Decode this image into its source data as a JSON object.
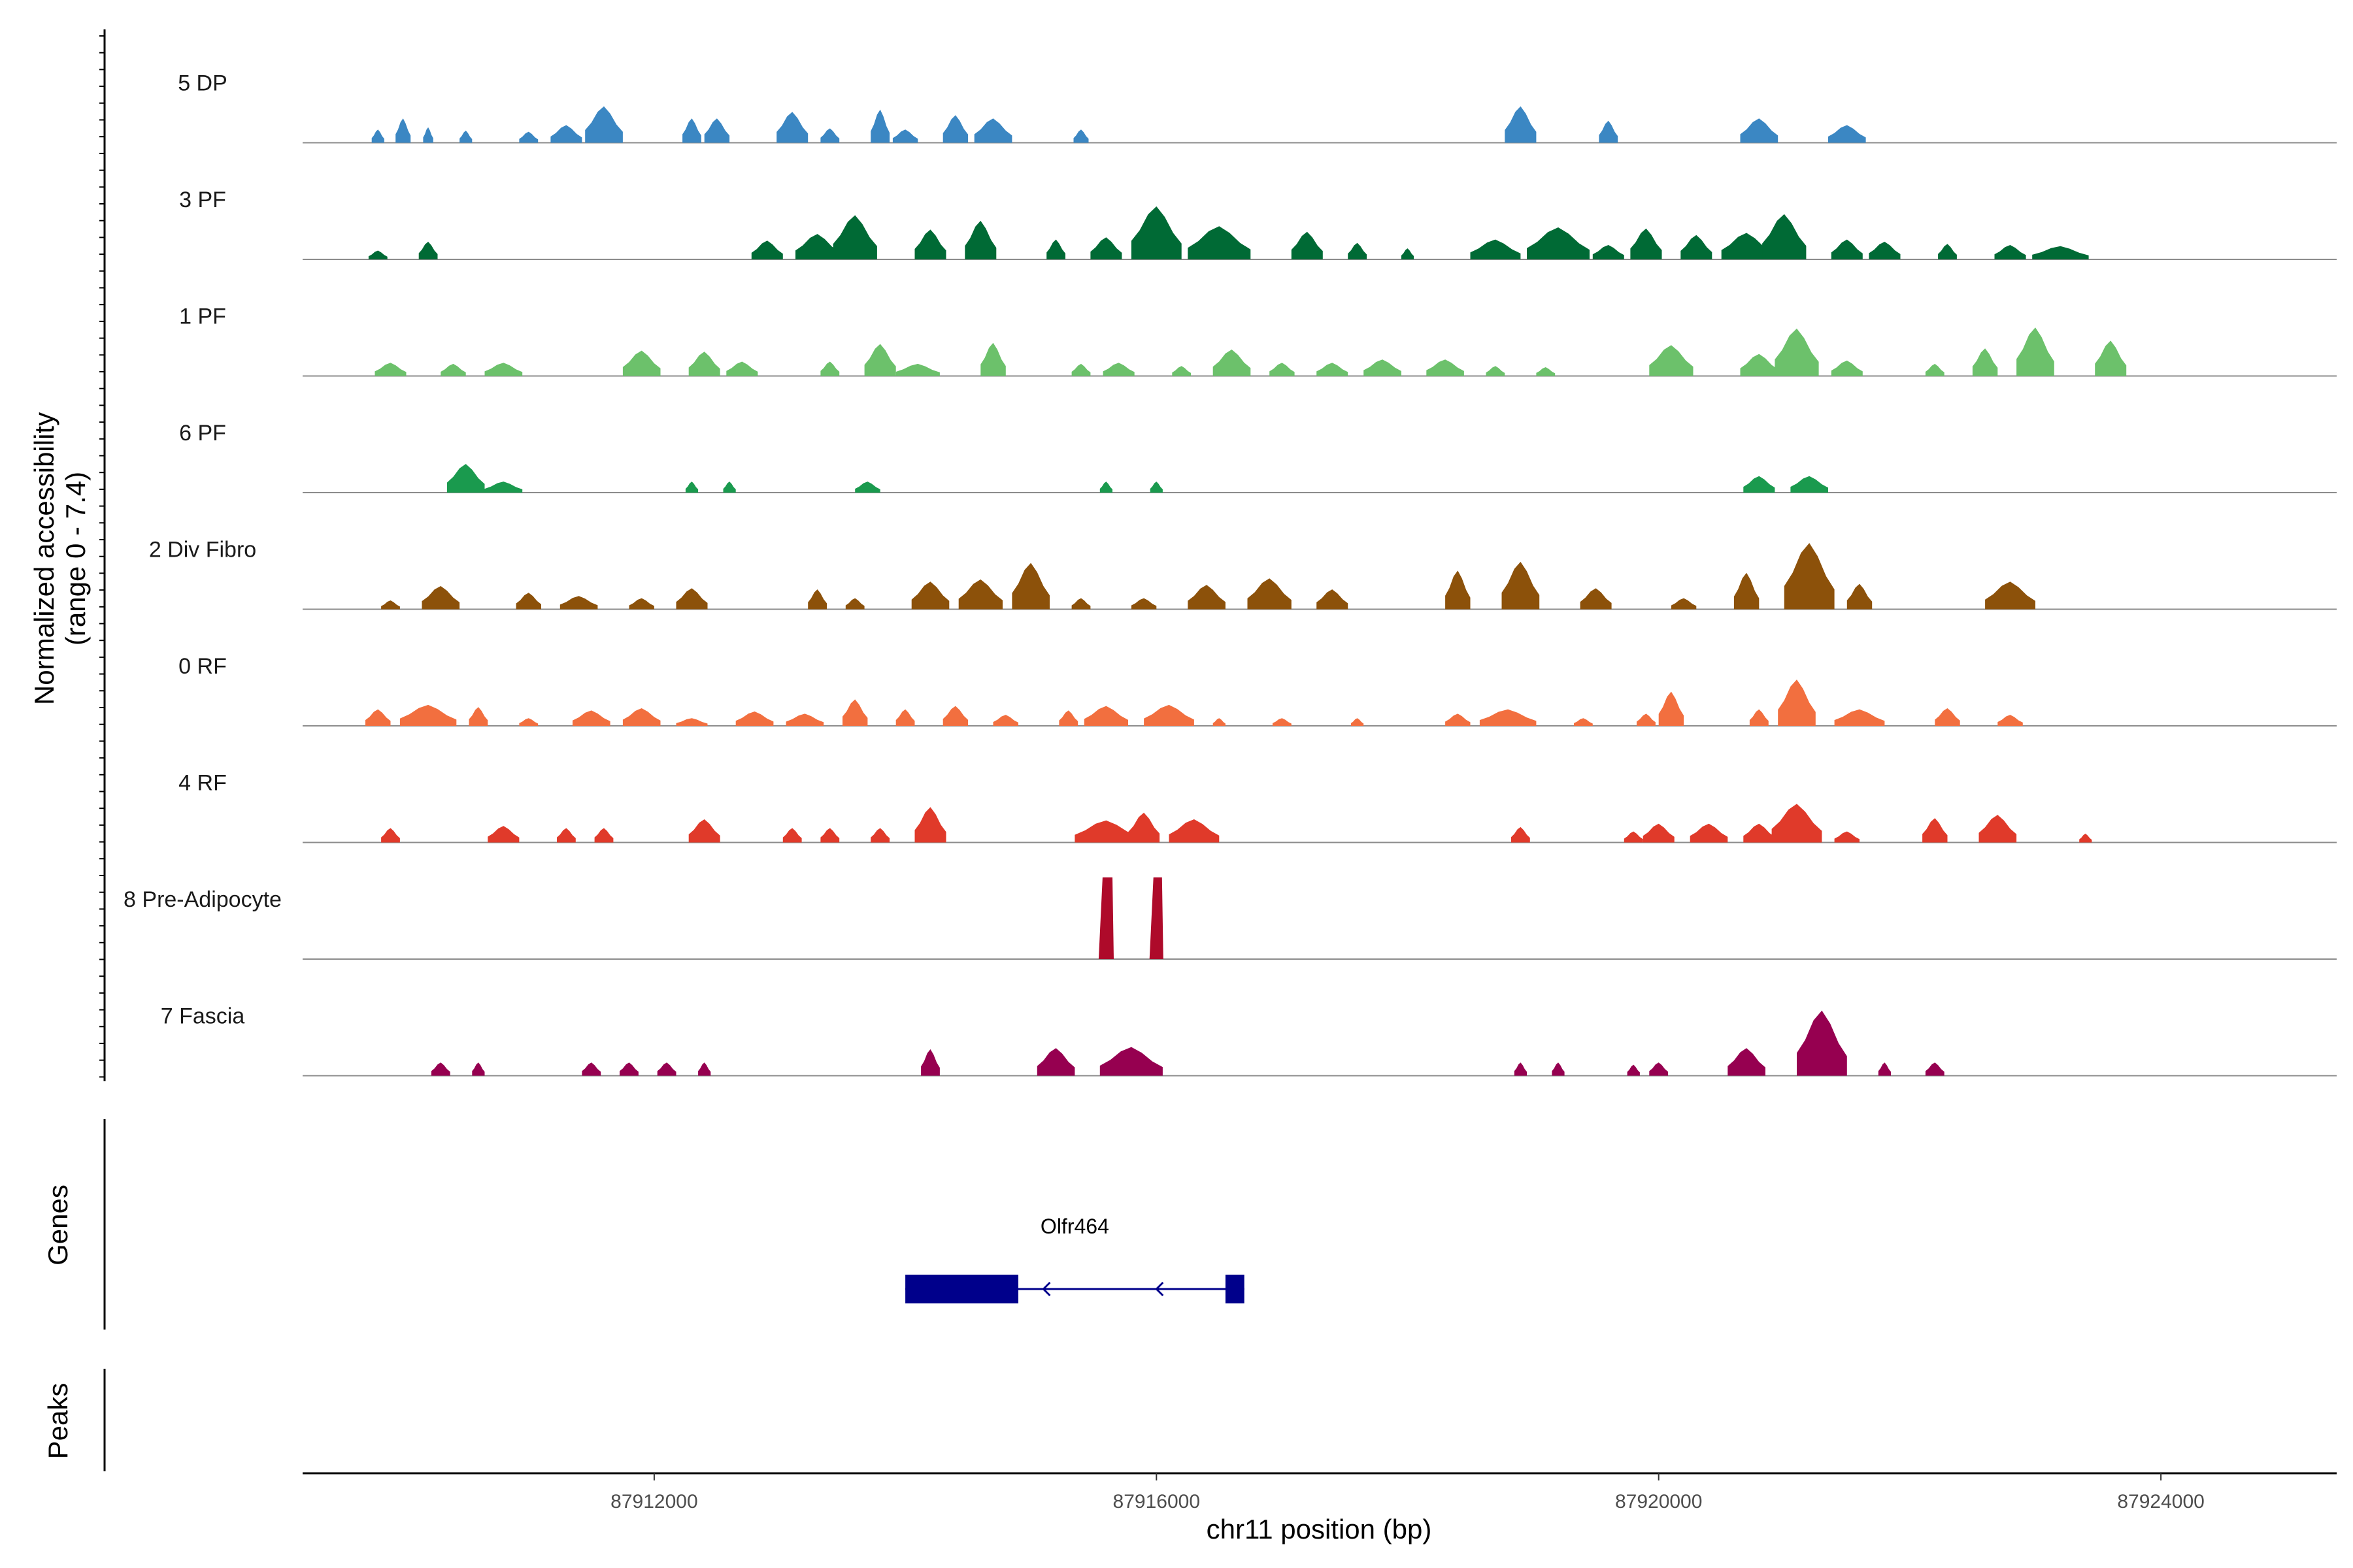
{
  "chart_data": {
    "type": "area",
    "title": "",
    "ylabel": "Normalized accessibility",
    "ylabel_range": "(range 0 - 7.4)",
    "xlabel": "chr11 position (bp)",
    "xlim": [
      87909200,
      87925400
    ],
    "x_ticks": [
      87912000,
      87916000,
      87920000,
      87924000
    ],
    "x_tick_labels": [
      "87912000",
      "87916000",
      "87920000",
      "87924000"
    ],
    "ylim": [
      0,
      7.4
    ],
    "series": [
      {
        "name": "5 DP",
        "color": "#3b87c3",
        "peaks": [
          [
            87909800,
            1.2,
            100
          ],
          [
            87910000,
            2.2,
            120
          ],
          [
            87910200,
            1.4,
            80
          ],
          [
            87910500,
            1.1,
            100
          ],
          [
            87911000,
            1.0,
            150
          ],
          [
            87911300,
            1.6,
            250
          ],
          [
            87911600,
            3.3,
            300
          ],
          [
            87912300,
            2.2,
            150
          ],
          [
            87912500,
            2.2,
            200
          ],
          [
            87913100,
            2.8,
            250
          ],
          [
            87913400,
            1.3,
            150
          ],
          [
            87913800,
            3.0,
            150
          ],
          [
            87914000,
            1.2,
            200
          ],
          [
            87914400,
            2.5,
            200
          ],
          [
            87914700,
            2.2,
            300
          ],
          [
            87915400,
            1.2,
            120
          ],
          [
            87918900,
            3.3,
            250
          ],
          [
            87919600,
            2.0,
            150
          ],
          [
            87920800,
            2.2,
            300
          ],
          [
            87921500,
            1.6,
            300
          ]
        ]
      },
      {
        "name": "3 PF",
        "color": "#006a35",
        "peaks": [
          [
            87909800,
            0.8,
            150
          ],
          [
            87910200,
            1.6,
            150
          ],
          [
            87912900,
            1.7,
            250
          ],
          [
            87913300,
            2.3,
            350
          ],
          [
            87913600,
            4.0,
            350
          ],
          [
            87914200,
            2.7,
            250
          ],
          [
            87914600,
            3.5,
            250
          ],
          [
            87915200,
            1.8,
            150
          ],
          [
            87915600,
            2.0,
            250
          ],
          [
            87916000,
            4.8,
            400
          ],
          [
            87916500,
            3.0,
            500
          ],
          [
            87917200,
            2.5,
            250
          ],
          [
            87917600,
            1.5,
            150
          ],
          [
            87918000,
            1.0,
            100
          ],
          [
            87918700,
            1.8,
            400
          ],
          [
            87919200,
            2.9,
            500
          ],
          [
            87919600,
            1.3,
            250
          ],
          [
            87919900,
            2.8,
            250
          ],
          [
            87920300,
            2.2,
            250
          ],
          [
            87920700,
            2.4,
            400
          ],
          [
            87921000,
            4.1,
            350
          ],
          [
            87921500,
            1.8,
            250
          ],
          [
            87921800,
            1.6,
            250
          ],
          [
            87922300,
            1.4,
            150
          ],
          [
            87922800,
            1.3,
            250
          ],
          [
            87923200,
            1.2,
            450
          ]
        ]
      },
      {
        "name": "1 PF",
        "color": "#6cc16b",
        "peaks": [
          [
            87909900,
            1.2,
            250
          ],
          [
            87910400,
            1.1,
            200
          ],
          [
            87910800,
            1.2,
            300
          ],
          [
            87911900,
            2.3,
            300
          ],
          [
            87912400,
            2.2,
            250
          ],
          [
            87912700,
            1.3,
            250
          ],
          [
            87913400,
            1.3,
            150
          ],
          [
            87913800,
            2.9,
            250
          ],
          [
            87914100,
            1.1,
            350
          ],
          [
            87914700,
            3.0,
            200
          ],
          [
            87915400,
            1.1,
            150
          ],
          [
            87915700,
            1.2,
            250
          ],
          [
            87916200,
            0.9,
            150
          ],
          [
            87916600,
            2.4,
            300
          ],
          [
            87917000,
            1.2,
            200
          ],
          [
            87917400,
            1.2,
            250
          ],
          [
            87917800,
            1.5,
            300
          ],
          [
            87918300,
            1.5,
            300
          ],
          [
            87918700,
            0.9,
            150
          ],
          [
            87919100,
            0.8,
            150
          ],
          [
            87920100,
            2.8,
            350
          ],
          [
            87920800,
            2.0,
            300
          ],
          [
            87921100,
            4.3,
            350
          ],
          [
            87921500,
            1.4,
            250
          ],
          [
            87922200,
            1.1,
            150
          ],
          [
            87922600,
            2.5,
            200
          ],
          [
            87923000,
            4.4,
            300
          ],
          [
            87923600,
            3.2,
            250
          ]
        ]
      },
      {
        "name": "6 PF",
        "color": "#1a9a4e",
        "peaks": [
          [
            87910500,
            2.6,
            300
          ],
          [
            87910800,
            1.0,
            300
          ],
          [
            87912300,
            1.0,
            100
          ],
          [
            87912600,
            1.0,
            100
          ],
          [
            87913700,
            1.0,
            200
          ],
          [
            87915600,
            1.0,
            100
          ],
          [
            87916000,
            1.0,
            100
          ],
          [
            87920800,
            1.5,
            250
          ],
          [
            87921200,
            1.5,
            300
          ]
        ]
      },
      {
        "name": "2 Div Fibro",
        "color": "#8c510a",
        "peaks": [
          [
            87909900,
            0.8,
            150
          ],
          [
            87910300,
            2.1,
            300
          ],
          [
            87911000,
            1.5,
            200
          ],
          [
            87911400,
            1.2,
            300
          ],
          [
            87911900,
            1.0,
            200
          ],
          [
            87912300,
            1.9,
            250
          ],
          [
            87913300,
            1.8,
            150
          ],
          [
            87913600,
            1.0,
            150
          ],
          [
            87914200,
            2.5,
            300
          ],
          [
            87914600,
            2.7,
            350
          ],
          [
            87915000,
            4.2,
            300
          ],
          [
            87915400,
            1.0,
            150
          ],
          [
            87915900,
            1.0,
            200
          ],
          [
            87916400,
            2.2,
            300
          ],
          [
            87916900,
            2.8,
            350
          ],
          [
            87917400,
            1.8,
            250
          ],
          [
            87918400,
            3.5,
            200
          ],
          [
            87918900,
            4.3,
            300
          ],
          [
            87919500,
            1.9,
            250
          ],
          [
            87920200,
            1.0,
            200
          ],
          [
            87920700,
            3.3,
            200
          ],
          [
            87921200,
            6.0,
            400
          ],
          [
            87921600,
            2.3,
            200
          ],
          [
            87922800,
            2.5,
            400
          ]
        ]
      },
      {
        "name": "0 RF",
        "color": "#f26f3f",
        "peaks": [
          [
            87909800,
            1.5,
            200
          ],
          [
            87910200,
            1.9,
            450
          ],
          [
            87910600,
            1.7,
            150
          ],
          [
            87911000,
            0.7,
            150
          ],
          [
            87911500,
            1.4,
            300
          ],
          [
            87911900,
            1.6,
            300
          ],
          [
            87912300,
            0.7,
            250
          ],
          [
            87912800,
            1.3,
            300
          ],
          [
            87913200,
            1.1,
            300
          ],
          [
            87913600,
            2.4,
            200
          ],
          [
            87914000,
            1.5,
            150
          ],
          [
            87914400,
            1.8,
            200
          ],
          [
            87914800,
            1.0,
            200
          ],
          [
            87915300,
            1.4,
            150
          ],
          [
            87915600,
            1.8,
            350
          ],
          [
            87916100,
            1.9,
            400
          ],
          [
            87916500,
            0.7,
            100
          ],
          [
            87917000,
            0.7,
            150
          ],
          [
            87917600,
            0.7,
            100
          ],
          [
            87918400,
            1.1,
            200
          ],
          [
            87918800,
            1.5,
            450
          ],
          [
            87919400,
            0.7,
            150
          ],
          [
            87919900,
            1.1,
            150
          ],
          [
            87920100,
            3.1,
            200
          ],
          [
            87920800,
            1.5,
            150
          ],
          [
            87921100,
            4.2,
            300
          ],
          [
            87921600,
            1.5,
            400
          ],
          [
            87922300,
            1.6,
            200
          ],
          [
            87922800,
            1.0,
            200
          ]
        ]
      },
      {
        "name": "4 RF",
        "color": "#e03a2a",
        "peaks": [
          [
            87909900,
            1.3,
            150
          ],
          [
            87910800,
            1.5,
            250
          ],
          [
            87911300,
            1.3,
            150
          ],
          [
            87911600,
            1.3,
            150
          ],
          [
            87912400,
            2.1,
            250
          ],
          [
            87913100,
            1.3,
            150
          ],
          [
            87913400,
            1.3,
            150
          ],
          [
            87913800,
            1.3,
            150
          ],
          [
            87914200,
            3.2,
            250
          ],
          [
            87915600,
            2.0,
            500
          ],
          [
            87915900,
            2.7,
            250
          ],
          [
            87916300,
            2.1,
            400
          ],
          [
            87918900,
            1.4,
            150
          ],
          [
            87919800,
            1.0,
            150
          ],
          [
            87920000,
            1.7,
            250
          ],
          [
            87920400,
            1.7,
            300
          ],
          [
            87920800,
            1.7,
            250
          ],
          [
            87921100,
            3.5,
            400
          ],
          [
            87921500,
            1.0,
            200
          ],
          [
            87922200,
            2.2,
            200
          ],
          [
            87922700,
            2.5,
            300
          ],
          [
            87923400,
            0.8,
            100
          ]
        ]
      },
      {
        "name": "8 Pre-Adipocyte",
        "color": "#ae0a2a",
        "peaks": [
          [
            87915600,
            7.4,
            120
          ],
          [
            87916000,
            7.4,
            110
          ]
        ]
      },
      {
        "name": "7 Fascia",
        "color": "#960050",
        "peaks": [
          [
            87910300,
            1.2,
            150
          ],
          [
            87910600,
            1.2,
            100
          ],
          [
            87911500,
            1.2,
            150
          ],
          [
            87911800,
            1.2,
            150
          ],
          [
            87912100,
            1.2,
            150
          ],
          [
            87912400,
            1.2,
            100
          ],
          [
            87914200,
            2.4,
            150
          ],
          [
            87915200,
            2.5,
            300
          ],
          [
            87915800,
            2.6,
            500
          ],
          [
            87918900,
            1.2,
            100
          ],
          [
            87919200,
            1.2,
            100
          ],
          [
            87919800,
            1.0,
            100
          ],
          [
            87920000,
            1.2,
            150
          ],
          [
            87920700,
            2.5,
            300
          ],
          [
            87921300,
            5.9,
            400
          ],
          [
            87921800,
            1.2,
            100
          ],
          [
            87922200,
            1.2,
            150
          ]
        ]
      }
    ],
    "genes": [
      {
        "name": "Olfr464",
        "color": "#00008b",
        "strand": "-",
        "start": 87914000,
        "end": 87916700,
        "exons": [
          [
            87914000,
            87914900
          ],
          [
            87916550,
            87916700
          ]
        ]
      }
    ],
    "extra_tracks": [
      "Genes",
      "Peaks"
    ]
  }
}
